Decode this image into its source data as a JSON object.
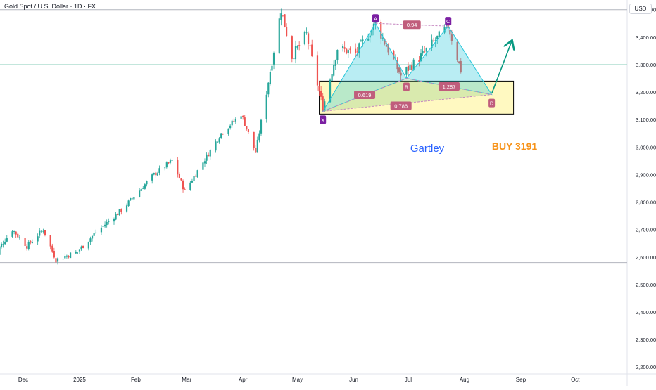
{
  "legend": {
    "symbol": "Gold Spot / U.S. Dollar · 1D · FX"
  },
  "currency": "USD",
  "chart_data": {
    "type": "candlestick",
    "ylim": [
      2175,
      3535
    ],
    "y_ticks": [
      {
        "value": 3500,
        "label": "3,500.00"
      },
      {
        "value": 3400,
        "label": "3,400.00"
      },
      {
        "value": 3300,
        "label": "3,300.00"
      },
      {
        "value": 3200,
        "label": "3,200.00"
      },
      {
        "value": 3100,
        "label": "3,100.00"
      },
      {
        "value": 3000,
        "label": "3,000.00"
      },
      {
        "value": 2900,
        "label": "2,900.00"
      },
      {
        "value": 2800,
        "label": "2,800.00"
      },
      {
        "value": 2700,
        "label": "2,700.00"
      },
      {
        "value": 2600,
        "label": "2,600.00"
      },
      {
        "value": 2500,
        "label": "2,500.00"
      },
      {
        "value": 2400,
        "label": "2,400.00"
      },
      {
        "value": 2300,
        "label": "2,300.00"
      },
      {
        "value": 2200,
        "label": "2,200.00"
      }
    ],
    "x_ticks": [
      {
        "date": "2024-12-01",
        "label": "Dec"
      },
      {
        "date": "2025-01-01",
        "label": "2025"
      },
      {
        "date": "2025-02-01",
        "label": "Feb"
      },
      {
        "date": "2025-03-01",
        "label": "Mar"
      },
      {
        "date": "2025-04-01",
        "label": "Apr"
      },
      {
        "date": "2025-05-01",
        "label": "May"
      },
      {
        "date": "2025-06-01",
        "label": "Jun"
      },
      {
        "date": "2025-07-01",
        "label": "Jul"
      },
      {
        "date": "2025-08-01",
        "label": "Aug"
      },
      {
        "date": "2025-09-01",
        "label": "Sep"
      },
      {
        "date": "2025-10-01",
        "label": "Oct"
      }
    ],
    "horizontal_lines": [
      {
        "value": 3500,
        "color": "#b2b5be"
      },
      {
        "value": 3300,
        "color": "#9fd8c6"
      },
      {
        "value": 2580,
        "color": "#b2b5be"
      }
    ],
    "bull_color": "#26a69a",
    "bear_color": "#ef5350",
    "price_path": [
      [
        "2024-11-13",
        2590
      ],
      [
        "2024-11-25",
        2700
      ],
      [
        "2024-12-03",
        2640
      ],
      [
        "2024-12-12",
        2700
      ],
      [
        "2024-12-19",
        2590
      ],
      [
        "2024-12-31",
        2620
      ],
      [
        "2025-01-10",
        2690
      ],
      [
        "2025-01-24",
        2770
      ],
      [
        "2025-02-11",
        2900
      ],
      [
        "2025-02-21",
        2950
      ],
      [
        "2025-02-28",
        2840
      ],
      [
        "2025-03-20",
        3050
      ],
      [
        "2025-03-31",
        3120
      ],
      [
        "2025-04-08",
        2980
      ],
      [
        "2025-04-22",
        3500
      ],
      [
        "2025-04-28",
        3330
      ],
      [
        "2025-05-06",
        3410
      ],
      [
        "2025-05-15",
        3140
      ],
      [
        "2025-05-23",
        3360
      ],
      [
        "2025-06-02",
        3340
      ],
      [
        "2025-06-13",
        3450
      ],
      [
        "2025-06-27",
        3260
      ],
      [
        "2025-07-08",
        3330
      ],
      [
        "2025-07-23",
        3440
      ],
      [
        "2025-07-30",
        3280
      ]
    ],
    "pattern": {
      "name": "Gartley",
      "points": [
        {
          "label": "X",
          "date": "2025-05-15",
          "value": 3130
        },
        {
          "label": "A",
          "date": "2025-06-13",
          "value": 3450
        },
        {
          "label": "B",
          "date": "2025-06-30",
          "value": 3250
        },
        {
          "label": "C",
          "date": "2025-07-23",
          "value": 3440
        },
        {
          "label": "D",
          "date": "2025-08-16",
          "value": 3191
        }
      ],
      "ratios": [
        {
          "label": "0.619",
          "between": "XA-AB"
        },
        {
          "label": "0.94",
          "between": "AB-BC"
        },
        {
          "label": "1.287",
          "between": "BC-CD"
        },
        {
          "label": "0.786",
          "between": "XA-XD"
        }
      ],
      "zone": {
        "from": "2025-05-13",
        "to": "2025-08-28",
        "low": 3120,
        "high": 3240
      },
      "target_arrow": {
        "from": [
          "2025-08-16",
          3195
        ],
        "to": [
          "2025-08-27",
          3385
        ]
      },
      "annotation": "BUY 3191"
    }
  }
}
